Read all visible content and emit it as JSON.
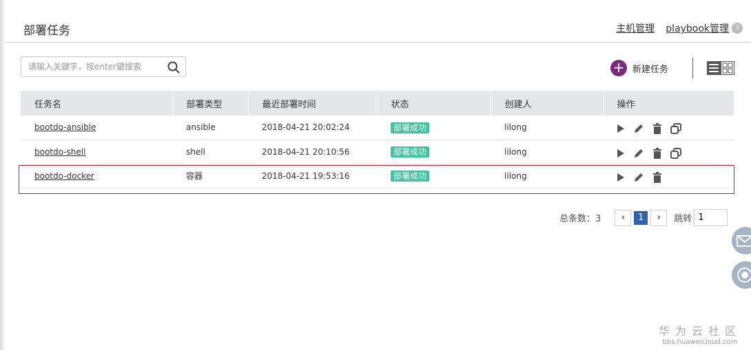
{
  "header": {
    "title": "部署任务",
    "links": [
      "主机管理",
      "playbook管理"
    ],
    "help": "?"
  },
  "search": {
    "placeholder": "请输入关键字，按enter键搜索",
    "value": ""
  },
  "toolbar": {
    "new_task": "新建任务"
  },
  "table": {
    "columns": [
      "任务名",
      "部署类型",
      "最近部署时间",
      "状态",
      "创建人",
      "操作"
    ],
    "rows": [
      {
        "name": "bootdo-ansible",
        "type": "ansible",
        "time": "2018-04-21 20:02:24",
        "status": "部署成功",
        "creator": "lilong",
        "copy": true
      },
      {
        "name": "bootdo-shell",
        "type": "shell",
        "time": "2018-04-21 20:10:56",
        "status": "部署成功",
        "creator": "lilong",
        "copy": true
      },
      {
        "name": "bootdo-docker",
        "type": "容器",
        "time": "2018-04-21 19:53:16",
        "status": "部署成功",
        "creator": "lilong",
        "copy": false
      }
    ]
  },
  "pagination": {
    "total_label": "总条数：3",
    "current": "1",
    "jump_label": "跳转",
    "jump_value": "1"
  },
  "watermark": {
    "cn": "华为云社区",
    "en": "bbs.huaweicloud.com"
  },
  "colors": {
    "accent": "#7b2a7a",
    "status": "#3cc4a0",
    "page": "#2f63ad",
    "highlight": "#b5202a"
  }
}
